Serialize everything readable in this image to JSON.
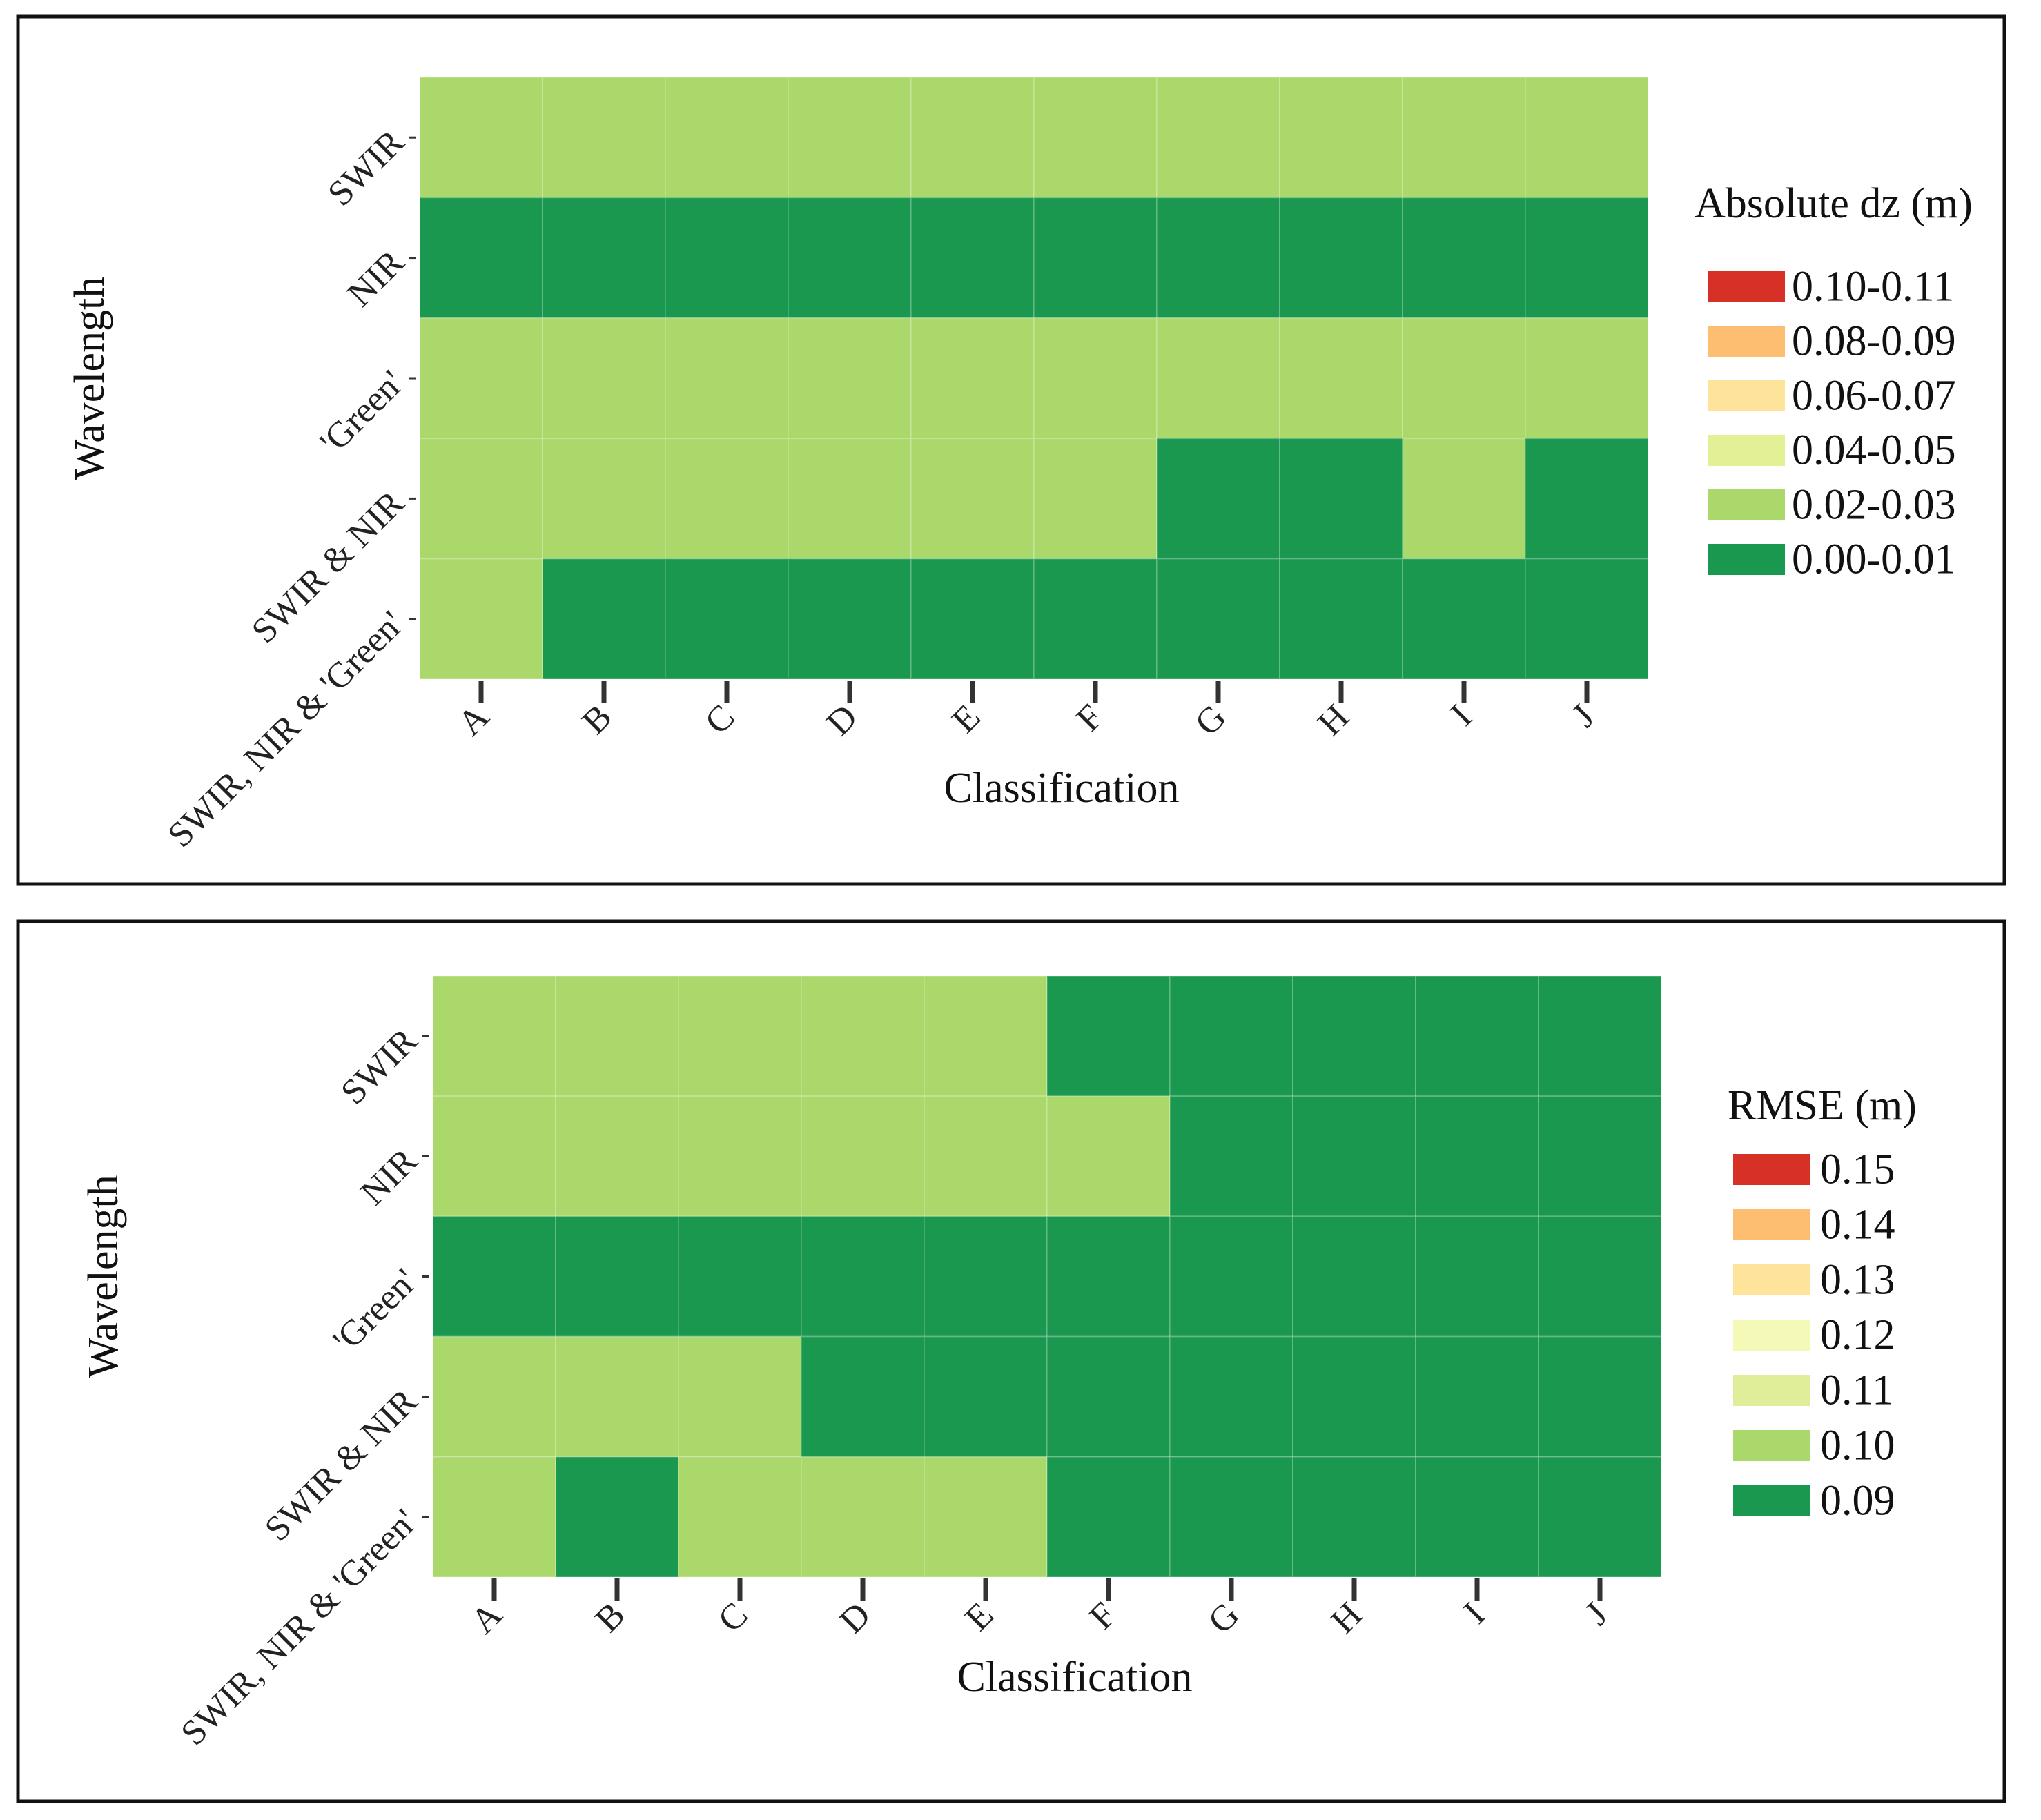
{
  "chart_data": [
    {
      "type": "heatmap",
      "title": "",
      "xlabel": "Classification",
      "ylabel": "Wavelength",
      "x_categories": [
        "A",
        "B",
        "C",
        "D",
        "E",
        "F",
        "G",
        "H",
        "I",
        "J"
      ],
      "y_categories": [
        "SWIR",
        "NIR",
        "'Green'",
        "SWIR & NIR",
        "SWIR, NIR & 'Green'"
      ],
      "legend": {
        "title": "Absolute dz (m)",
        "levels": [
          {
            "label": "0.10-0.11",
            "color": "#d73027"
          },
          {
            "label": "0.08-0.09",
            "color": "#fdbe72"
          },
          {
            "label": "0.06-0.07",
            "color": "#fee39b"
          },
          {
            "label": "0.04-0.05",
            "color": "#e3f095"
          },
          {
            "label": "0.02-0.03",
            "color": "#abd86a"
          },
          {
            "label": "0.00-0.01",
            "color": "#1a984f"
          }
        ]
      },
      "values": [
        [
          "0.02-0.03",
          "0.02-0.03",
          "0.02-0.03",
          "0.02-0.03",
          "0.02-0.03",
          "0.02-0.03",
          "0.02-0.03",
          "0.02-0.03",
          "0.02-0.03",
          "0.02-0.03"
        ],
        [
          "0.00-0.01",
          "0.00-0.01",
          "0.00-0.01",
          "0.00-0.01",
          "0.00-0.01",
          "0.00-0.01",
          "0.00-0.01",
          "0.00-0.01",
          "0.00-0.01",
          "0.00-0.01"
        ],
        [
          "0.02-0.03",
          "0.02-0.03",
          "0.02-0.03",
          "0.02-0.03",
          "0.02-0.03",
          "0.02-0.03",
          "0.02-0.03",
          "0.02-0.03",
          "0.02-0.03",
          "0.02-0.03"
        ],
        [
          "0.02-0.03",
          "0.02-0.03",
          "0.02-0.03",
          "0.02-0.03",
          "0.02-0.03",
          "0.02-0.03",
          "0.00-0.01",
          "0.00-0.01",
          "0.02-0.03",
          "0.00-0.01"
        ],
        [
          "0.02-0.03",
          "0.00-0.01",
          "0.00-0.01",
          "0.00-0.01",
          "0.00-0.01",
          "0.00-0.01",
          "0.00-0.01",
          "0.00-0.01",
          "0.00-0.01",
          "0.00-0.01"
        ]
      ]
    },
    {
      "type": "heatmap",
      "title": "",
      "xlabel": "Classification",
      "ylabel": "Wavelength",
      "x_categories": [
        "A",
        "B",
        "C",
        "D",
        "E",
        "F",
        "G",
        "H",
        "I",
        "J"
      ],
      "y_categories": [
        "SWIR",
        "NIR",
        "'Green'",
        "SWIR & NIR",
        "SWIR, NIR & 'Green'"
      ],
      "legend": {
        "title": "RMSE (m)",
        "levels": [
          {
            "label": "0.15",
            "color": "#d73027"
          },
          {
            "label": "0.14",
            "color": "#fdbe72"
          },
          {
            "label": "0.13",
            "color": "#fee39b"
          },
          {
            "label": "0.12",
            "color": "#f4f9b8"
          },
          {
            "label": "0.11",
            "color": "#e0ee99"
          },
          {
            "label": "0.10",
            "color": "#abd86a"
          },
          {
            "label": "0.09",
            "color": "#1a984f"
          }
        ]
      },
      "values": [
        [
          "0.10",
          "0.10",
          "0.10",
          "0.10",
          "0.10",
          "0.09",
          "0.09",
          "0.09",
          "0.09",
          "0.09"
        ],
        [
          "0.10",
          "0.10",
          "0.10",
          "0.10",
          "0.10",
          "0.10",
          "0.09",
          "0.09",
          "0.09",
          "0.09"
        ],
        [
          "0.09",
          "0.09",
          "0.09",
          "0.09",
          "0.09",
          "0.09",
          "0.09",
          "0.09",
          "0.09",
          "0.09"
        ],
        [
          "0.10",
          "0.10",
          "0.10",
          "0.09",
          "0.09",
          "0.09",
          "0.09",
          "0.09",
          "0.09",
          "0.09"
        ],
        [
          "0.10",
          "0.09",
          "0.10",
          "0.10",
          "0.10",
          "0.09",
          "0.09",
          "0.09",
          "0.09",
          "0.09"
        ]
      ]
    }
  ]
}
